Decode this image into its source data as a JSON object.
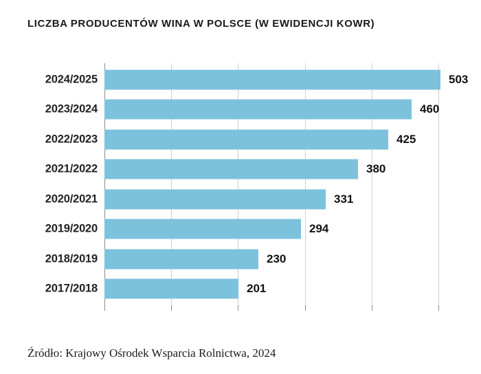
{
  "chart_data": {
    "type": "bar",
    "orientation": "horizontal",
    "title": "LICZBA PRODUCENTÓW WINA W POLSCE (W EWIDENCJI KOWR)",
    "categories": [
      "2024/2025",
      "2023/2024",
      "2022/2023",
      "2021/2022",
      "2020/2021",
      "2019/2020",
      "2018/2019",
      "2017/2018"
    ],
    "values": [
      503,
      460,
      425,
      380,
      331,
      294,
      230,
      201
    ],
    "xlabel": "",
    "ylabel": "",
    "xlim": [
      0,
      500
    ],
    "x_ticks": [
      0,
      100,
      200,
      300,
      400,
      500
    ],
    "grid": true,
    "data_labels": true,
    "legend": "none",
    "bar_color": "#7cc2dd",
    "gridline_color": "#cfcfcf",
    "axis_line_color": "#8c8c8c"
  },
  "source": "Źródło: Krajowy Ośrodek Wsparcia Rolnictwa, 2024"
}
